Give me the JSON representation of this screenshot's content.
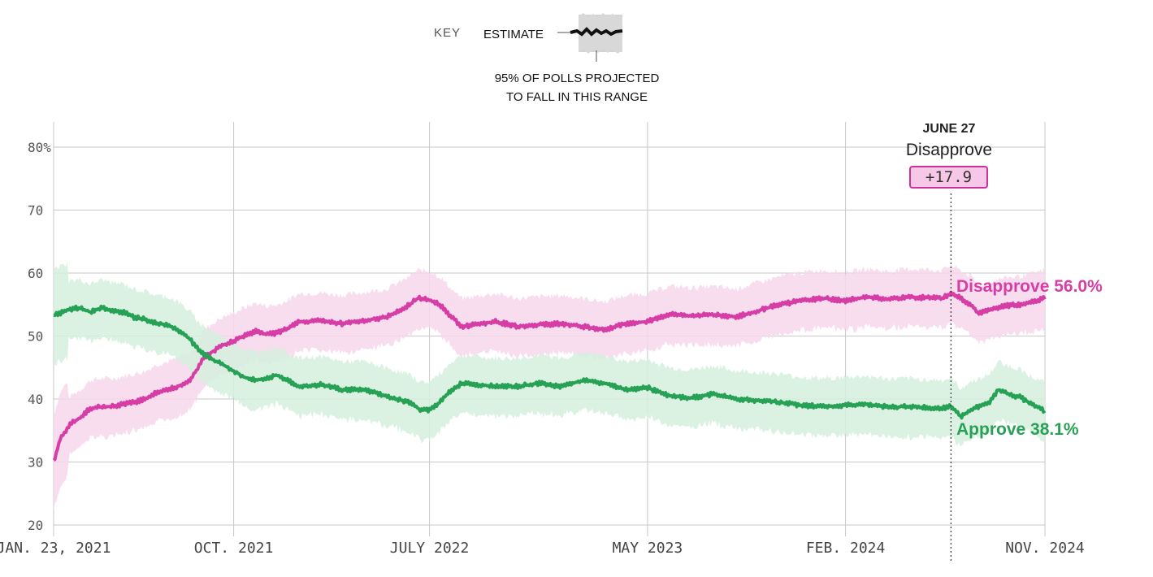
{
  "key": {
    "label": "KEY",
    "estimate": "ESTIMATE",
    "note_line1": "95% OF POLLS PROJECTED",
    "note_line2": "TO FALL IN THIS RANGE"
  },
  "annotation": {
    "date": "JUNE 27",
    "series": "Disapprove",
    "value": "+17.9"
  },
  "colors": {
    "approve": "#27a155",
    "approve_band": "#d5f0dd",
    "disapprove": "#d63ea6",
    "disapprove_band": "#f7d7ec",
    "grid": "#c8c8c8"
  },
  "chart_data": {
    "type": "line",
    "x_type": "date",
    "xlim": [
      "2021-01-23",
      "2024-11-05"
    ],
    "ylim": [
      20,
      80
    ],
    "yticks": [
      20,
      30,
      40,
      50,
      60,
      70,
      80
    ],
    "ytick_labels": [
      "20",
      "30",
      "40",
      "50",
      "60",
      "70",
      "80%"
    ],
    "xticks": [
      "2021-01-23",
      "2021-10-01",
      "2022-07-01",
      "2023-05-01",
      "2024-02-01",
      "2024-11-05"
    ],
    "xtick_labels": [
      "JAN. 23, 2021",
      "OCT. 2021",
      "JULY 2022",
      "MAY 2023",
      "FEB. 2024",
      "NOV. 2024"
    ],
    "grid": true,
    "band": "95% of polls projected to fall in this range",
    "highlight_date": "2024-06-27",
    "series": [
      {
        "name": "Disapprove",
        "end_label": "Disapprove 56.0%",
        "color": "#d63ea6",
        "points": [
          [
            "2021-01-23",
            30.0
          ],
          [
            "2021-02-01",
            33.5
          ],
          [
            "2021-02-15",
            36.0
          ],
          [
            "2021-03-01",
            37.0
          ],
          [
            "2021-03-15",
            38.5
          ],
          [
            "2021-04-01",
            38.8
          ],
          [
            "2021-04-15",
            38.8
          ],
          [
            "2021-05-01",
            39.2
          ],
          [
            "2021-05-15",
            39.5
          ],
          [
            "2021-06-01",
            40.0
          ],
          [
            "2021-06-15",
            41.0
          ],
          [
            "2021-07-01",
            41.5
          ],
          [
            "2021-07-15",
            42.0
          ],
          [
            "2021-08-01",
            43.0
          ],
          [
            "2021-08-10",
            44.5
          ],
          [
            "2021-08-20",
            46.5
          ],
          [
            "2021-09-01",
            47.5
          ],
          [
            "2021-09-15",
            48.5
          ],
          [
            "2021-10-01",
            49.2
          ],
          [
            "2021-10-15",
            50.0
          ],
          [
            "2021-11-01",
            50.8
          ],
          [
            "2021-11-15",
            50.3
          ],
          [
            "2021-12-01",
            50.5
          ],
          [
            "2021-12-15",
            51.2
          ],
          [
            "2022-01-01",
            52.3
          ],
          [
            "2022-02-01",
            52.4
          ],
          [
            "2022-03-01",
            52.0
          ],
          [
            "2022-04-01",
            52.5
          ],
          [
            "2022-05-01",
            53.0
          ],
          [
            "2022-05-15",
            53.8
          ],
          [
            "2022-06-01",
            54.8
          ],
          [
            "2022-06-15",
            56.0
          ],
          [
            "2022-07-01",
            55.8
          ],
          [
            "2022-07-15",
            55.0
          ],
          [
            "2022-08-01",
            53.0
          ],
          [
            "2022-08-15",
            51.5
          ],
          [
            "2022-09-01",
            51.8
          ],
          [
            "2022-10-01",
            52.3
          ],
          [
            "2022-11-01",
            51.5
          ],
          [
            "2022-12-01",
            51.8
          ],
          [
            "2023-01-01",
            52.0
          ],
          [
            "2023-02-01",
            51.5
          ],
          [
            "2023-03-01",
            51.0
          ],
          [
            "2023-04-01",
            52.0
          ],
          [
            "2023-05-01",
            52.3
          ],
          [
            "2023-06-01",
            53.5
          ],
          [
            "2023-07-01",
            53.2
          ],
          [
            "2023-08-01",
            53.4
          ],
          [
            "2023-09-01",
            53.0
          ],
          [
            "2023-10-01",
            54.0
          ],
          [
            "2023-11-01",
            55.0
          ],
          [
            "2023-12-01",
            55.6
          ],
          [
            "2024-01-01",
            56.0
          ],
          [
            "2024-02-01",
            55.6
          ],
          [
            "2024-03-01",
            56.2
          ],
          [
            "2024-04-01",
            55.8
          ],
          [
            "2024-05-01",
            56.2
          ],
          [
            "2024-06-15",
            56.0
          ],
          [
            "2024-06-27",
            56.8
          ],
          [
            "2024-07-10",
            56.0
          ],
          [
            "2024-07-25",
            55.0
          ],
          [
            "2024-08-05",
            53.5
          ],
          [
            "2024-08-20",
            54.2
          ],
          [
            "2024-09-10",
            54.8
          ],
          [
            "2024-10-01",
            55.0
          ],
          [
            "2024-10-20",
            55.5
          ],
          [
            "2024-11-05",
            56.0
          ]
        ]
      },
      {
        "name": "Approve",
        "end_label": "Approve 38.1%",
        "color": "#27a155",
        "points": [
          [
            "2021-01-23",
            53.2
          ],
          [
            "2021-02-15",
            54.3
          ],
          [
            "2021-03-01",
            54.5
          ],
          [
            "2021-03-15",
            53.8
          ],
          [
            "2021-04-01",
            54.5
          ],
          [
            "2021-04-15",
            54.0
          ],
          [
            "2021-05-01",
            53.8
          ],
          [
            "2021-05-15",
            53.0
          ],
          [
            "2021-06-01",
            52.6
          ],
          [
            "2021-06-15",
            52.0
          ],
          [
            "2021-07-01",
            51.8
          ],
          [
            "2021-07-15",
            51.0
          ],
          [
            "2021-08-01",
            49.5
          ],
          [
            "2021-08-15",
            47.5
          ],
          [
            "2021-09-01",
            46.3
          ],
          [
            "2021-09-15",
            45.5
          ],
          [
            "2021-10-01",
            44.5
          ],
          [
            "2021-10-15",
            43.5
          ],
          [
            "2021-11-01",
            43.0
          ],
          [
            "2021-12-01",
            43.8
          ],
          [
            "2021-12-15",
            43.0
          ],
          [
            "2022-01-01",
            42.0
          ],
          [
            "2022-02-01",
            42.3
          ],
          [
            "2022-03-01",
            41.5
          ],
          [
            "2022-04-01",
            41.5
          ],
          [
            "2022-05-01",
            40.5
          ],
          [
            "2022-06-01",
            39.5
          ],
          [
            "2022-06-20",
            38.2
          ],
          [
            "2022-07-01",
            38.3
          ],
          [
            "2022-07-15",
            39.5
          ],
          [
            "2022-08-01",
            41.5
          ],
          [
            "2022-08-15",
            42.5
          ],
          [
            "2022-09-01",
            42.3
          ],
          [
            "2022-10-01",
            42.0
          ],
          [
            "2022-11-01",
            42.0
          ],
          [
            "2022-12-01",
            42.5
          ],
          [
            "2023-01-01",
            42.0
          ],
          [
            "2023-02-01",
            43.0
          ],
          [
            "2023-03-01",
            42.5
          ],
          [
            "2023-04-01",
            41.5
          ],
          [
            "2023-05-01",
            41.8
          ],
          [
            "2023-06-01",
            40.5
          ],
          [
            "2023-07-01",
            40.2
          ],
          [
            "2023-08-01",
            40.8
          ],
          [
            "2023-09-01",
            40.0
          ],
          [
            "2023-10-01",
            39.8
          ],
          [
            "2023-11-01",
            39.5
          ],
          [
            "2023-12-01",
            39.0
          ],
          [
            "2024-01-01",
            38.8
          ],
          [
            "2024-02-01",
            39.0
          ],
          [
            "2024-03-01",
            39.2
          ],
          [
            "2024-04-01",
            38.7
          ],
          [
            "2024-05-01",
            38.8
          ],
          [
            "2024-06-15",
            38.5
          ],
          [
            "2024-06-27",
            38.9
          ],
          [
            "2024-07-10",
            37.2
          ],
          [
            "2024-07-25",
            38.3
          ],
          [
            "2024-08-10",
            39.0
          ],
          [
            "2024-08-20",
            39.5
          ],
          [
            "2024-09-01",
            41.5
          ],
          [
            "2024-09-15",
            40.8
          ],
          [
            "2024-10-01",
            40.3
          ],
          [
            "2024-10-20",
            39.0
          ],
          [
            "2024-11-05",
            38.1
          ]
        ]
      }
    ]
  }
}
